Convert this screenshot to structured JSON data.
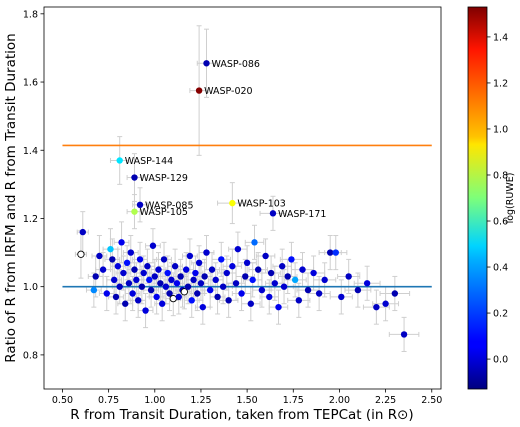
{
  "chart_data": {
    "type": "scatter",
    "xlabel": "R from Transit Duration, taken from TEPCat (in R⊙)",
    "ylabel": "Ratio of R from IRFM and R from Transit Duration",
    "xlim": [
      0.4,
      2.55
    ],
    "ylim": [
      0.7,
      1.82
    ],
    "xticks": [
      "0.50",
      "0.75",
      "1.00",
      "1.25",
      "1.50",
      "1.75",
      "2.00",
      "2.25",
      "2.50"
    ],
    "xtick_values": [
      0.5,
      0.75,
      1.0,
      1.25,
      1.5,
      1.75,
      2.0,
      2.25,
      2.5
    ],
    "yticks": [
      "0.8",
      "1.0",
      "1.2",
      "1.4",
      "1.6",
      "1.8"
    ],
    "ytick_values": [
      0.8,
      1.0,
      1.2,
      1.4,
      1.6,
      1.8
    ],
    "colorbar": {
      "label": "log(RUWE)",
      "colormap": "jet",
      "range": [
        -0.13,
        1.53
      ],
      "ticks": [
        "0.0",
        "0.2",
        "0.4",
        "0.6",
        "0.8",
        "1.0",
        "1.2",
        "1.4"
      ],
      "tick_values": [
        0.0,
        0.2,
        0.4,
        0.6,
        0.8,
        1.0,
        1.2,
        1.4
      ]
    },
    "reference_lines": [
      {
        "y": 1.0,
        "color": "#1f77b4"
      },
      {
        "y": 1.414,
        "color": "#ff7f0e"
      }
    ],
    "labeled_points": [
      {
        "name": "WASP-086",
        "x": 1.28,
        "y": 1.655,
        "xerr": 0.05,
        "yerr": 0.1,
        "c": -0.05
      },
      {
        "name": "WASP-020",
        "x": 1.24,
        "y": 1.575,
        "xerr": 0.05,
        "yerr": 0.19,
        "c": 1.52
      },
      {
        "name": "WASP-144",
        "x": 0.81,
        "y": 1.37,
        "xerr": 0.05,
        "yerr": 0.07,
        "c": 0.45
      },
      {
        "name": "WASP-129",
        "x": 0.89,
        "y": 1.32,
        "xerr": 0.04,
        "yerr": 0.07,
        "c": -0.05
      },
      {
        "name": "WASP-085",
        "x": 0.92,
        "y": 1.24,
        "xerr": 0.04,
        "yerr": 0.05,
        "c": -0.02
      },
      {
        "name": "WASP-105",
        "x": 0.89,
        "y": 1.22,
        "xerr": 0.04,
        "yerr": 0.05,
        "c": 0.78
      },
      {
        "name": "WASP-103",
        "x": 1.42,
        "y": 1.245,
        "xerr": 0.08,
        "yerr": 0.06,
        "c": 0.9
      },
      {
        "name": "WASP-171",
        "x": 1.64,
        "y": 1.215,
        "xerr": 0.07,
        "yerr": 0.05,
        "c": -0.02
      }
    ],
    "points": [
      {
        "x": 0.6,
        "y": 1.095,
        "c": null,
        "xerr": 0.03,
        "yerr": 0.07
      },
      {
        "x": 0.61,
        "y": 1.16,
        "c": -0.02,
        "xerr": 0.03,
        "yerr": 0.06
      },
      {
        "x": 0.67,
        "y": 0.99,
        "c": 0.3,
        "xerr": 0.04,
        "yerr": 0.05
      },
      {
        "x": 0.68,
        "y": 1.03,
        "c": -0.05,
        "xerr": 0.04,
        "yerr": 0.06
      },
      {
        "x": 0.7,
        "y": 1.09,
        "c": -0.02,
        "xerr": 0.04,
        "yerr": 0.06
      },
      {
        "x": 0.72,
        "y": 1.05,
        "c": 0.0,
        "xerr": 0.04,
        "yerr": 0.05
      },
      {
        "x": 0.74,
        "y": 0.98,
        "c": 0.05,
        "xerr": 0.04,
        "yerr": 0.05
      },
      {
        "x": 0.76,
        "y": 1.11,
        "c": 0.4,
        "xerr": 0.04,
        "yerr": 0.06
      },
      {
        "x": 0.77,
        "y": 1.08,
        "c": -0.05,
        "xerr": 0.04,
        "yerr": 0.06
      },
      {
        "x": 0.78,
        "y": 1.02,
        "c": 0.0,
        "xerr": 0.04,
        "yerr": 0.05
      },
      {
        "x": 0.79,
        "y": 0.97,
        "c": -0.05,
        "xerr": 0.04,
        "yerr": 0.05
      },
      {
        "x": 0.8,
        "y": 1.06,
        "c": 0.02,
        "xerr": 0.04,
        "yerr": 0.05
      },
      {
        "x": 0.81,
        "y": 1.0,
        "c": -0.02,
        "xerr": 0.04,
        "yerr": 0.05
      },
      {
        "x": 0.82,
        "y": 1.13,
        "c": 0.05,
        "xerr": 0.04,
        "yerr": 0.06
      },
      {
        "x": 0.83,
        "y": 1.04,
        "c": 0.0,
        "xerr": 0.04,
        "yerr": 0.05
      },
      {
        "x": 0.84,
        "y": 0.95,
        "c": -0.05,
        "xerr": 0.04,
        "yerr": 0.05
      },
      {
        "x": 0.85,
        "y": 1.07,
        "c": 0.1,
        "xerr": 0.04,
        "yerr": 0.05
      },
      {
        "x": 0.86,
        "y": 1.01,
        "c": -0.02,
        "xerr": 0.04,
        "yerr": 0.05
      },
      {
        "x": 0.87,
        "y": 1.1,
        "c": 0.0,
        "xerr": 0.04,
        "yerr": 0.05
      },
      {
        "x": 0.88,
        "y": 0.98,
        "c": 0.02,
        "xerr": 0.04,
        "yerr": 0.05
      },
      {
        "x": 0.89,
        "y": 1.05,
        "c": -0.05,
        "xerr": 0.04,
        "yerr": 0.05
      },
      {
        "x": 0.9,
        "y": 1.02,
        "c": 0.0,
        "xerr": 0.04,
        "yerr": 0.05
      },
      {
        "x": 0.91,
        "y": 0.96,
        "c": -0.02,
        "xerr": 0.04,
        "yerr": 0.05
      },
      {
        "x": 0.92,
        "y": 1.08,
        "c": 0.05,
        "xerr": 0.04,
        "yerr": 0.05
      },
      {
        "x": 0.93,
        "y": 1.0,
        "c": -0.05,
        "xerr": 0.04,
        "yerr": 0.05
      },
      {
        "x": 0.94,
        "y": 1.04,
        "c": 0.0,
        "xerr": 0.04,
        "yerr": 0.05
      },
      {
        "x": 0.95,
        "y": 0.93,
        "c": 0.02,
        "xerr": 0.04,
        "yerr": 0.05
      },
      {
        "x": 0.96,
        "y": 1.06,
        "c": -0.02,
        "xerr": 0.04,
        "yerr": 0.05
      },
      {
        "x": 0.97,
        "y": 1.02,
        "c": 0.1,
        "xerr": 0.04,
        "yerr": 0.05
      },
      {
        "x": 0.98,
        "y": 0.99,
        "c": -0.05,
        "xerr": 0.04,
        "yerr": 0.05
      },
      {
        "x": 0.99,
        "y": 1.12,
        "c": 0.0,
        "xerr": 0.04,
        "yerr": 0.05
      },
      {
        "x": 1.0,
        "y": 1.03,
        "c": -0.02,
        "xerr": 0.04,
        "yerr": 0.05
      },
      {
        "x": 1.01,
        "y": 0.97,
        "c": 0.05,
        "xerr": 0.04,
        "yerr": 0.05
      },
      {
        "x": 1.02,
        "y": 1.05,
        "c": 0.0,
        "xerr": 0.04,
        "yerr": 0.05
      },
      {
        "x": 1.03,
        "y": 1.01,
        "c": -0.05,
        "xerr": 0.04,
        "yerr": 0.05
      },
      {
        "x": 1.04,
        "y": 0.95,
        "c": 0.02,
        "xerr": 0.04,
        "yerr": 0.05
      },
      {
        "x": 1.05,
        "y": 1.08,
        "c": -0.02,
        "xerr": 0.04,
        "yerr": 0.05
      },
      {
        "x": 1.06,
        "y": 1.0,
        "c": 0.0,
        "xerr": 0.04,
        "yerr": 0.05
      },
      {
        "x": 1.07,
        "y": 1.04,
        "c": 0.1,
        "xerr": 0.04,
        "yerr": 0.05
      },
      {
        "x": 1.08,
        "y": 0.98,
        "c": -0.05,
        "xerr": 0.04,
        "yerr": 0.05
      },
      {
        "x": 1.09,
        "y": 1.02,
        "c": 0.0,
        "xerr": 0.04,
        "yerr": 0.05
      },
      {
        "x": 1.1,
        "y": 0.965,
        "c": null,
        "xerr": 0.04,
        "yerr": 0.05
      },
      {
        "x": 1.11,
        "y": 1.06,
        "c": -0.02,
        "xerr": 0.04,
        "yerr": 0.05
      },
      {
        "x": 1.12,
        "y": 1.01,
        "c": 0.05,
        "xerr": 0.04,
        "yerr": 0.05
      },
      {
        "x": 1.13,
        "y": 0.97,
        "c": 0.0,
        "xerr": 0.04,
        "yerr": 0.05
      },
      {
        "x": 1.14,
        "y": 1.03,
        "c": -0.05,
        "xerr": 0.04,
        "yerr": 0.05
      },
      {
        "x": 1.15,
        "y": 0.99,
        "c": -0.02,
        "xerr": 0.04,
        "yerr": 0.05
      },
      {
        "x": 1.16,
        "y": 0.985,
        "c": null,
        "xerr": 0.04,
        "yerr": 0.05
      },
      {
        "x": 1.17,
        "y": 1.05,
        "c": 0.02,
        "xerr": 0.04,
        "yerr": 0.05
      },
      {
        "x": 1.18,
        "y": 1.0,
        "c": -0.05,
        "xerr": 0.04,
        "yerr": 0.05
      },
      {
        "x": 1.19,
        "y": 1.09,
        "c": 0.0,
        "xerr": 0.04,
        "yerr": 0.05
      },
      {
        "x": 1.2,
        "y": 0.96,
        "c": 0.1,
        "xerr": 0.04,
        "yerr": 0.05
      },
      {
        "x": 1.21,
        "y": 1.02,
        "c": -0.02,
        "xerr": 0.04,
        "yerr": 0.05
      },
      {
        "x": 1.22,
        "y": 1.04,
        "c": 0.05,
        "xerr": 0.04,
        "yerr": 0.05
      },
      {
        "x": 1.23,
        "y": 0.98,
        "c": -0.05,
        "xerr": 0.04,
        "yerr": 0.05
      },
      {
        "x": 1.24,
        "y": 1.07,
        "c": 0.0,
        "xerr": 0.04,
        "yerr": 0.05
      },
      {
        "x": 1.25,
        "y": 1.01,
        "c": -0.02,
        "xerr": 0.04,
        "yerr": 0.05
      },
      {
        "x": 1.26,
        "y": 0.94,
        "c": 0.02,
        "xerr": 0.04,
        "yerr": 0.05
      },
      {
        "x": 1.27,
        "y": 1.03,
        "c": -0.05,
        "xerr": 0.04,
        "yerr": 0.05
      },
      {
        "x": 1.28,
        "y": 1.1,
        "c": 0.0,
        "xerr": 0.04,
        "yerr": 0.05
      },
      {
        "x": 1.3,
        "y": 0.99,
        "c": 0.05,
        "xerr": 0.04,
        "yerr": 0.05
      },
      {
        "x": 1.31,
        "y": 1.05,
        "c": -0.02,
        "xerr": 0.04,
        "yerr": 0.05
      },
      {
        "x": 1.33,
        "y": 1.02,
        "c": 0.0,
        "xerr": 0.04,
        "yerr": 0.05
      },
      {
        "x": 1.34,
        "y": 0.97,
        "c": -0.05,
        "xerr": 0.04,
        "yerr": 0.05
      },
      {
        "x": 1.36,
        "y": 1.08,
        "c": 0.1,
        "xerr": 0.05,
        "yerr": 0.05
      },
      {
        "x": 1.37,
        "y": 1.0,
        "c": -0.02,
        "xerr": 0.05,
        "yerr": 0.05
      },
      {
        "x": 1.39,
        "y": 1.04,
        "c": 0.0,
        "xerr": 0.05,
        "yerr": 0.05
      },
      {
        "x": 1.4,
        "y": 0.96,
        "c": -0.05,
        "xerr": 0.05,
        "yerr": 0.05
      },
      {
        "x": 1.42,
        "y": 1.06,
        "c": 0.02,
        "xerr": 0.05,
        "yerr": 0.05
      },
      {
        "x": 1.44,
        "y": 1.01,
        "c": -0.02,
        "xerr": 0.05,
        "yerr": 0.05
      },
      {
        "x": 1.45,
        "y": 1.11,
        "c": 0.0,
        "xerr": 0.05,
        "yerr": 0.05
      },
      {
        "x": 1.47,
        "y": 0.98,
        "c": 0.05,
        "xerr": 0.05,
        "yerr": 0.05
      },
      {
        "x": 1.49,
        "y": 1.03,
        "c": -0.05,
        "xerr": 0.05,
        "yerr": 0.05
      },
      {
        "x": 1.5,
        "y": 1.07,
        "c": 0.0,
        "xerr": 0.05,
        "yerr": 0.05
      },
      {
        "x": 1.52,
        "y": 0.95,
        "c": -0.02,
        "xerr": 0.05,
        "yerr": 0.05
      },
      {
        "x": 1.53,
        "y": 1.02,
        "c": 0.1,
        "xerr": 0.05,
        "yerr": 0.05
      },
      {
        "x": 1.54,
        "y": 1.13,
        "c": 0.25,
        "xerr": 0.05,
        "yerr": 0.05
      },
      {
        "x": 1.56,
        "y": 1.05,
        "c": -0.05,
        "xerr": 0.05,
        "yerr": 0.05
      },
      {
        "x": 1.58,
        "y": 0.99,
        "c": 0.0,
        "xerr": 0.05,
        "yerr": 0.05
      },
      {
        "x": 1.6,
        "y": 1.09,
        "c": -0.02,
        "xerr": 0.05,
        "yerr": 0.05
      },
      {
        "x": 1.62,
        "y": 0.97,
        "c": 0.02,
        "xerr": 0.05,
        "yerr": 0.05
      },
      {
        "x": 1.63,
        "y": 1.04,
        "c": -0.05,
        "xerr": 0.05,
        "yerr": 0.05
      },
      {
        "x": 1.65,
        "y": 1.01,
        "c": 0.0,
        "xerr": 0.05,
        "yerr": 0.05
      },
      {
        "x": 1.67,
        "y": 0.94,
        "c": 0.05,
        "xerr": 0.05,
        "yerr": 0.05
      },
      {
        "x": 1.69,
        "y": 1.06,
        "c": -0.02,
        "xerr": 0.05,
        "yerr": 0.05
      },
      {
        "x": 1.7,
        "y": 1.0,
        "c": 0.0,
        "xerr": 0.05,
        "yerr": 0.05
      },
      {
        "x": 1.72,
        "y": 1.03,
        "c": -0.05,
        "xerr": 0.05,
        "yerr": 0.05
      },
      {
        "x": 1.74,
        "y": 1.08,
        "c": 0.1,
        "xerr": 0.06,
        "yerr": 0.05
      },
      {
        "x": 1.76,
        "y": 1.02,
        "c": 0.35,
        "xerr": 0.06,
        "yerr": 0.05
      },
      {
        "x": 1.78,
        "y": 0.96,
        "c": -0.02,
        "xerr": 0.06,
        "yerr": 0.05
      },
      {
        "x": 1.8,
        "y": 1.05,
        "c": 0.0,
        "xerr": 0.06,
        "yerr": 0.05
      },
      {
        "x": 1.83,
        "y": 0.99,
        "c": -0.05,
        "xerr": 0.06,
        "yerr": 0.05
      },
      {
        "x": 1.86,
        "y": 1.04,
        "c": 0.02,
        "xerr": 0.06,
        "yerr": 0.05
      },
      {
        "x": 1.89,
        "y": 0.98,
        "c": -0.02,
        "xerr": 0.06,
        "yerr": 0.05
      },
      {
        "x": 1.92,
        "y": 1.02,
        "c": 0.0,
        "xerr": 0.06,
        "yerr": 0.05
      },
      {
        "x": 1.95,
        "y": 1.1,
        "c": -0.05,
        "xerr": 0.06,
        "yerr": 0.05
      },
      {
        "x": 1.98,
        "y": 1.1,
        "c": 0.15,
        "xerr": 0.06,
        "yerr": 0.05
      },
      {
        "x": 2.01,
        "y": 0.97,
        "c": 0.0,
        "xerr": 0.06,
        "yerr": 0.05
      },
      {
        "x": 2.05,
        "y": 1.03,
        "c": -0.02,
        "xerr": 0.06,
        "yerr": 0.05
      },
      {
        "x": 2.1,
        "y": 0.99,
        "c": -0.05,
        "xerr": 0.07,
        "yerr": 0.05
      },
      {
        "x": 2.15,
        "y": 1.01,
        "c": 0.02,
        "xerr": 0.07,
        "yerr": 0.05
      },
      {
        "x": 2.2,
        "y": 0.94,
        "c": -0.02,
        "xerr": 0.07,
        "yerr": 0.05
      },
      {
        "x": 2.25,
        "y": 0.95,
        "c": 0.0,
        "xerr": 0.07,
        "yerr": 0.05
      },
      {
        "x": 2.3,
        "y": 0.98,
        "c": -0.05,
        "xerr": 0.08,
        "yerr": 0.05
      },
      {
        "x": 2.35,
        "y": 0.86,
        "c": -0.02,
        "xerr": 0.08,
        "yerr": 0.05
      }
    ]
  }
}
